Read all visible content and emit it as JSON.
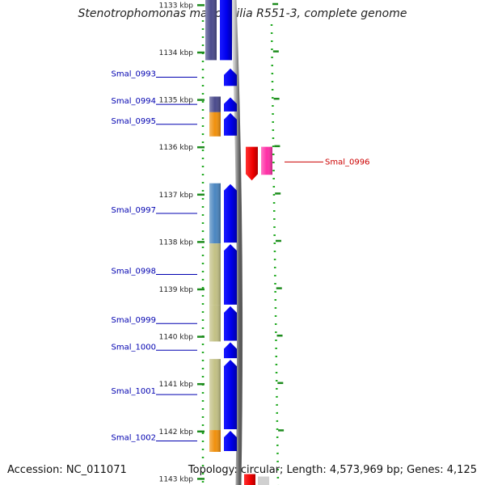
{
  "title": "Stenotrophomonas maltophilia R551-3, complete genome",
  "accession_label": "Accession: NC_011071",
  "topology_label": "Topology: circular; Length: 4,573,969 bp; Genes: 4,125",
  "scale_ticks": [
    {
      "label": "1133 kbp",
      "kbp": 1133
    },
    {
      "label": "1134 kbp",
      "kbp": 1134
    },
    {
      "label": "1135 kbp",
      "kbp": 1135
    },
    {
      "label": "1136 kbp",
      "kbp": 1136
    },
    {
      "label": "1137 kbp",
      "kbp": 1137
    },
    {
      "label": "1138 kbp",
      "kbp": 1138
    },
    {
      "label": "1139 kbp",
      "kbp": 1139
    },
    {
      "label": "1140 kbp",
      "kbp": 1140
    },
    {
      "label": "1141 kbp",
      "kbp": 1141
    },
    {
      "label": "1142 kbp",
      "kbp": 1142
    },
    {
      "label": "1143 kbp",
      "kbp": 1143
    }
  ],
  "genes": [
    {
      "name": "Smal_0993",
      "strand": "forward",
      "start_kbp": 1134.32,
      "end_kbp": 1134.72,
      "cog_color": null,
      "label_color": "#0000b0"
    },
    {
      "name": "Smal_0994",
      "strand": "forward",
      "start_kbp": 1134.93,
      "end_kbp": 1135.26,
      "cog_color": "#4a4a8c",
      "label_color": "#0000b0"
    },
    {
      "name": "Smal_0995",
      "strand": "forward",
      "start_kbp": 1135.26,
      "end_kbp": 1135.77,
      "cog_color": "#f0900c",
      "label_color": "#0000b0"
    },
    {
      "name": "Smal_0996",
      "strand": "reverse",
      "start_kbp": 1135.99,
      "end_kbp": 1136.7,
      "cog_color": "#ff2ea6",
      "label_color": "#cc0000"
    },
    {
      "name": "Smal_0997",
      "strand": "forward",
      "start_kbp": 1136.76,
      "end_kbp": 1138.03,
      "cog_color": "#4a86c0",
      "label_color": "#0000b0"
    },
    {
      "name": "Smal_0998",
      "strand": "forward",
      "start_kbp": 1138.03,
      "end_kbp": 1139.34,
      "cog_color": "#c2c084",
      "label_color": "#0000b0"
    },
    {
      "name": "Smal_0999",
      "strand": "forward",
      "start_kbp": 1139.34,
      "end_kbp": 1140.1,
      "cog_color": "#c2c084",
      "label_color": "#0000b0"
    },
    {
      "name": "Smal_1000",
      "strand": "forward",
      "start_kbp": 1140.1,
      "end_kbp": 1140.47,
      "cog_color": null,
      "label_color": "#0000b0"
    },
    {
      "name": "Smal_1001",
      "strand": "forward",
      "start_kbp": 1140.47,
      "end_kbp": 1141.97,
      "cog_color": "#c2c084",
      "label_color": "#0000b0"
    },
    {
      "name": "Smal_1002",
      "strand": "forward",
      "start_kbp": 1141.97,
      "end_kbp": 1142.43,
      "cog_color": "#f0900c",
      "label_color": "#0000b0"
    }
  ],
  "top_partial_gene": {
    "strand": "forward",
    "start_kbp": 1132.9,
    "end_kbp": 1134.16,
    "cog_color": "#4a4a8c"
  },
  "bottom_partial_gene": {
    "strand": "reverse",
    "start_kbp": 1142.9,
    "end_kbp": 1143.3,
    "cog_color": "#ff2ea6"
  },
  "colors": {
    "forward_cds": "#0000ee",
    "reverse_cds": "#ff0000",
    "backbone": "#9a9a9a",
    "tick": "#1e8c1e",
    "dotted_track": "#22aa22"
  }
}
